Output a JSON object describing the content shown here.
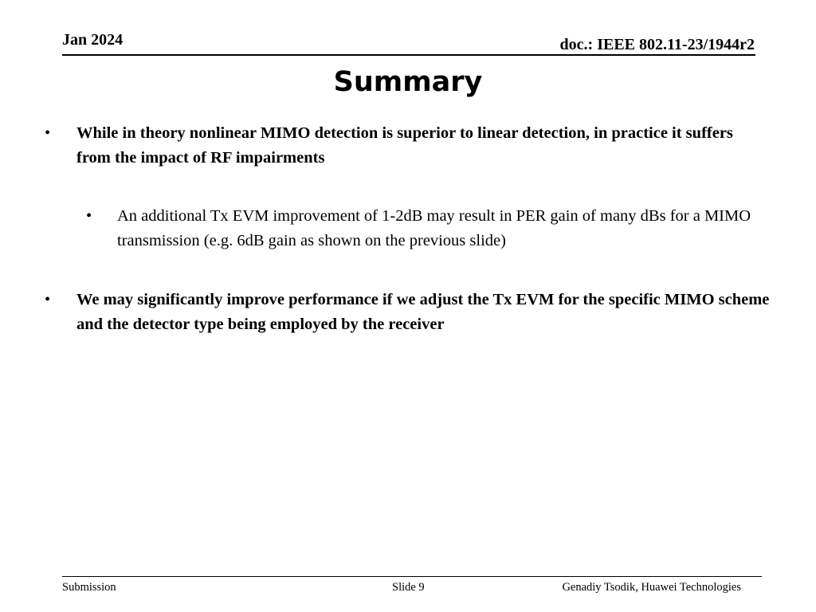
{
  "header": {
    "date": "Jan 2024",
    "doc_id": "doc.: IEEE 802.11-23/1944r2"
  },
  "slide": {
    "title": "Summary",
    "bullets": [
      {
        "marker": "•",
        "text": "While in theory nonlinear MIMO detection is superior to linear detection, in practice it suffers from the impact of RF impairments"
      },
      {
        "marker": "•",
        "text": "An additional Tx EVM improvement of 1-2dB may result in PER gain of many dBs for a MIMO transmission (e.g. 6dB gain as shown on the previous slide)"
      },
      {
        "marker": "•",
        "text": "We may significantly improve performance if we adjust the Tx EVM for the specific MIMO scheme and the detector type being employed by the receiver"
      }
    ]
  },
  "footer": {
    "left": "Submission",
    "center": "Slide 9",
    "right": "Genadiy Tsodik, Huawei Technologies"
  }
}
